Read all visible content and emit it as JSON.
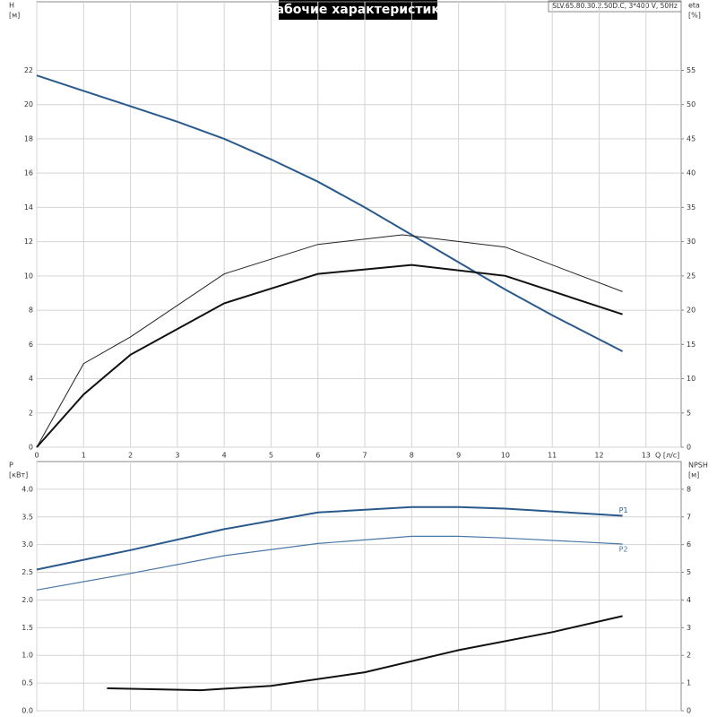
{
  "chart_data": [
    {
      "type": "line",
      "title": "Рабочие характеристики",
      "subtitle": "SLV.65.80.30.2.50D.C, 3*400 V, 50Hz",
      "ylabel": [
        "H",
        "[м]"
      ],
      "y2label": [
        "eta",
        "[%]"
      ],
      "xlabel": "Q [л/с]",
      "xlim": [
        0,
        13.75
      ],
      "xticks": [
        0,
        1,
        2,
        3,
        4,
        5,
        6,
        7,
        8,
        9,
        10,
        11,
        12,
        13
      ],
      "ylim": [
        0,
        26
      ],
      "yticks": [
        0,
        2,
        4,
        6,
        8,
        10,
        12,
        14,
        16,
        18,
        20,
        22
      ],
      "y2lim": [
        0,
        65
      ],
      "y2ticks": [
        0,
        5,
        10,
        15,
        20,
        25,
        30,
        35,
        40,
        45,
        50,
        55
      ],
      "grid": true,
      "series": [
        {
          "color": "#2a5a8c",
          "width": 2,
          "x": [
            0,
            1,
            2,
            3,
            4,
            5,
            6,
            7,
            8,
            9,
            10,
            11,
            12,
            12.5
          ],
          "values": [
            21.7,
            20.8,
            19.9,
            19.0,
            18.0,
            16.8,
            15.5,
            14.0,
            12.4,
            10.8,
            9.2,
            7.7,
            6.3,
            5.6
          ]
        },
        {
          "color": "#222222",
          "width": 1,
          "axis": "y2",
          "x": [
            0,
            1,
            2,
            4,
            6,
            7.8,
            10,
            12.5
          ],
          "values": [
            0,
            12.2,
            16.1,
            25.3,
            29.6,
            31,
            29.2,
            22.7
          ]
        },
        {
          "color": "#111111",
          "width": 2,
          "axis": "y2",
          "x": [
            0,
            1,
            2,
            4,
            6,
            8,
            10,
            12.5
          ],
          "values": [
            0,
            7.7,
            13.5,
            21,
            25.3,
            26.6,
            25,
            19.4
          ]
        }
      ]
    },
    {
      "type": "line",
      "ylabel": [
        "P",
        "[кВт]"
      ],
      "y2label": [
        "NPSH",
        "[м]"
      ],
      "xlim": [
        0,
        13.75
      ],
      "xticks": [
        0,
        1,
        2,
        3,
        4,
        5,
        6,
        7,
        8,
        9,
        10,
        11,
        12,
        13
      ],
      "ylim": [
        0,
        4.5
      ],
      "yticks": [
        {
          "value": 0,
          "label": "0.0"
        },
        0.5,
        {
          "value": 1,
          "label": "1.0"
        },
        1.5,
        {
          "value": 2,
          "label": "2.0"
        },
        2.5,
        {
          "value": 3,
          "label": "3.0"
        },
        3.5,
        {
          "value": 4,
          "label": "4.0"
        }
      ],
      "y2lim": [
        0,
        9
      ],
      "y2ticks": [
        0,
        1,
        2,
        3,
        4,
        5,
        6,
        7,
        8
      ],
      "grid": true,
      "series": [
        {
          "name": "P1",
          "color": "#2a5a8c",
          "width": 2,
          "x": [
            0,
            2,
            4,
            6,
            8,
            9,
            10,
            12.5
          ],
          "values": [
            2.55,
            2.9,
            3.28,
            3.58,
            3.68,
            3.68,
            3.65,
            3.52
          ]
        },
        {
          "name": "P2",
          "color": "#4a78a8",
          "width": 1.2,
          "x": [
            0,
            2,
            4,
            6,
            8,
            9,
            10,
            12.5
          ],
          "values": [
            2.18,
            2.48,
            2.8,
            3.02,
            3.15,
            3.15,
            3.12,
            3.01
          ]
        },
        {
          "color": "#111111",
          "width": 2,
          "axis": "y2",
          "x": [
            1.5,
            3.5,
            5,
            7,
            9,
            11,
            12.5
          ],
          "values": [
            0.81,
            0.74,
            0.9,
            1.39,
            2.19,
            2.84,
            3.42
          ]
        }
      ]
    }
  ]
}
